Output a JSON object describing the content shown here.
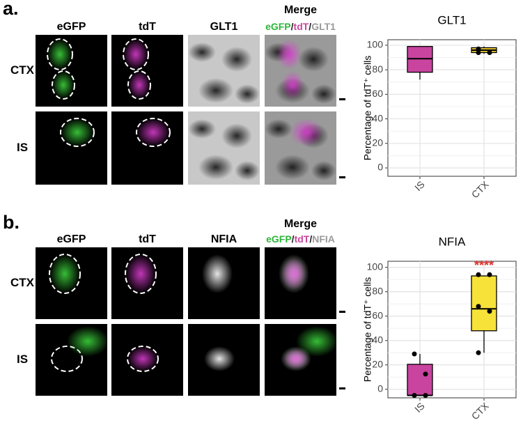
{
  "figure": {
    "panels": [
      {
        "label": "a.",
        "columns": [
          "eGFP",
          "tdT",
          "GLT1",
          "Merge"
        ],
        "merge_key": [
          "eGFP",
          "/",
          "tdT",
          "/",
          "GLT1"
        ],
        "rows": [
          "CTX",
          "IS"
        ]
      },
      {
        "label": "b.",
        "columns": [
          "eGFP",
          "tdT",
          "NFIA",
          "Merge"
        ],
        "merge_key": [
          "eGFP",
          "/",
          "tdT",
          "/",
          "NFIA"
        ],
        "rows": [
          "CTX",
          "IS"
        ]
      }
    ]
  },
  "chart_data": [
    {
      "type": "box",
      "title": "GLT1",
      "ylabel": "Percentage of tdT⁺ cells",
      "categories": [
        "IS",
        "CTX"
      ],
      "boxes": [
        {
          "min": 72,
          "q1": 78,
          "median": 89,
          "q3": 99,
          "max": 99,
          "color": "#c8449e",
          "points": []
        },
        {
          "min": 93,
          "q1": 94,
          "median": 96,
          "q3": 98,
          "max": 99,
          "color": "#e8c530",
          "points": [
            97,
            94,
            94
          ]
        }
      ],
      "ylim": [
        -6.8,
        104.5
      ],
      "yticks": [
        0,
        20,
        40,
        60,
        80,
        100
      ],
      "grid": true
    },
    {
      "type": "box",
      "title": "NFIA",
      "ylabel": "Percentage of tdT⁺ cells",
      "categories": [
        "IS",
        "CTX"
      ],
      "boxes": [
        {
          "min": -5,
          "q1": -5,
          "median": -5,
          "q3": 20.5,
          "max": 29,
          "color": "#c8449e",
          "points": [
            29,
            12.5,
            -5,
            -5
          ]
        },
        {
          "min": 30,
          "q1": 48,
          "median": 66,
          "q3": 93,
          "max": 93,
          "color": "#f7e23a",
          "points": [
            94,
            94,
            68,
            64,
            30
          ]
        }
      ],
      "ylim": [
        -7,
        105
      ],
      "yticks": [
        0,
        20,
        40,
        60,
        80,
        100
      ],
      "grid": true,
      "annotation": "****",
      "annotation_color": "#e0302a"
    }
  ]
}
